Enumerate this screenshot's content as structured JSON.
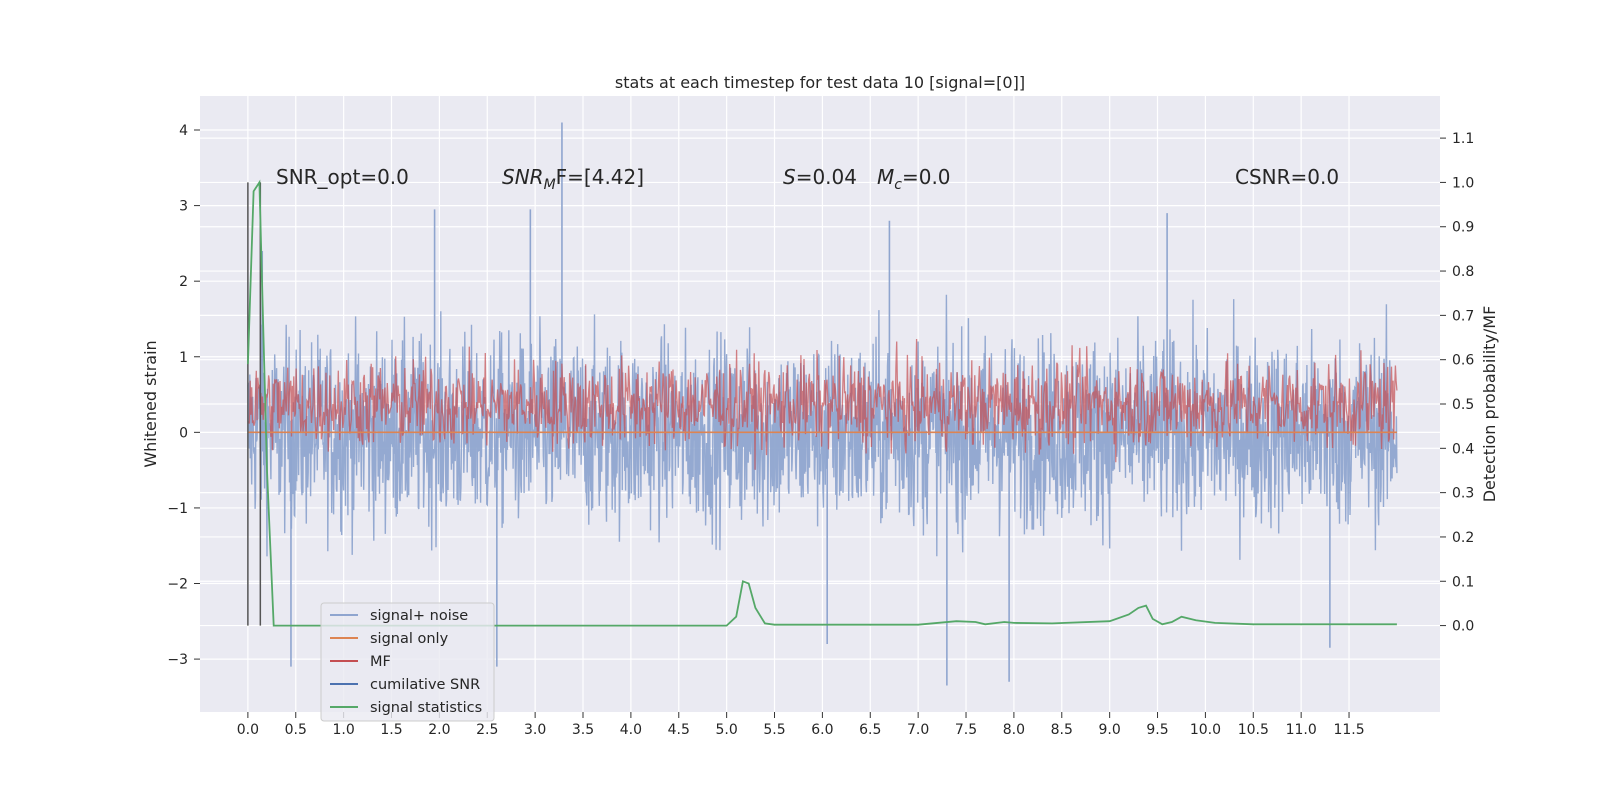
{
  "chart_data": {
    "type": "line",
    "title": "stats at each timestep for test data 10 [signal=[0]]",
    "xlabel": "",
    "ylabel": "Whitened strain",
    "ylabel_right": "Detection probability/MF",
    "xlim": [
      -0.5,
      12.45
    ],
    "ylim": [
      -3.7,
      4.45
    ],
    "ylim_right": [
      -0.195,
      1.195
    ],
    "x_ticks": [
      "0.0",
      "0.5",
      "1.0",
      "1.5",
      "2.0",
      "2.5",
      "3.0",
      "3.5",
      "4.0",
      "4.5",
      "5.0",
      "5.5",
      "6.0",
      "6.5",
      "7.0",
      "7.5",
      "8.0",
      "8.5",
      "9.0",
      "9.5",
      "10.0",
      "10.5",
      "11.0",
      "11.5"
    ],
    "y_ticks_left": [
      "−3",
      "−2",
      "−1",
      "0",
      "1",
      "2",
      "3",
      "4"
    ],
    "y_ticks_right": [
      "0.0",
      "0.1",
      "0.2",
      "0.3",
      "0.4",
      "0.5",
      "0.6",
      "0.7",
      "0.8",
      "0.9",
      "1.0",
      "1.1"
    ],
    "grid": true,
    "legend_position": "lower-left",
    "annotations": [
      {
        "id": "snr-opt",
        "text": "SNR_opt=0.0"
      },
      {
        "id": "snr-mf",
        "text_main": "SNR",
        "text_sub": "M",
        "text_rest": "F=[4.42]"
      },
      {
        "id": "s-value",
        "text_main": "S",
        "text_rest": "=0.04"
      },
      {
        "id": "mc-value",
        "text_main": "M",
        "text_sub": "c",
        "text_rest": "=0.0"
      },
      {
        "id": "csnr",
        "text": "CSNR=0.0"
      }
    ],
    "legend": [
      {
        "label": "signal+ noise",
        "color": "#8fa5cf"
      },
      {
        "label": "signal only",
        "color": "#dd8452"
      },
      {
        "label": "MF",
        "color": "#c44e52"
      },
      {
        "label": "cumilative SNR",
        "color": "#4c72b0"
      },
      {
        "label": "signal statistics",
        "color": "#55a868"
      }
    ],
    "series": [
      {
        "name": "signal+ noise",
        "axis": "left",
        "color": "#8fa5cf",
        "x_range": [
          0.0,
          12.0
        ],
        "typical_range": [
          -2.1,
          2.1
        ],
        "extremes": [
          {
            "x": 3.28,
            "y": 4.1
          },
          {
            "x": 0.15,
            "y": 2.4
          },
          {
            "x": 1.95,
            "y": 2.95
          },
          {
            "x": 2.95,
            "y": 2.95
          },
          {
            "x": 6.7,
            "y": 2.8
          },
          {
            "x": 9.6,
            "y": 2.9
          },
          {
            "x": 0.45,
            "y": -3.1
          },
          {
            "x": 2.6,
            "y": -3.1
          },
          {
            "x": 7.3,
            "y": -3.35
          },
          {
            "x": 7.95,
            "y": -3.3
          },
          {
            "x": 6.05,
            "y": -2.8
          },
          {
            "x": 11.3,
            "y": -2.85
          }
        ]
      },
      {
        "name": "signal only",
        "axis": "left",
        "color": "#dd8452",
        "x": [
          0.0,
          12.0
        ],
        "y": [
          0.0,
          0.0
        ]
      },
      {
        "name": "MF",
        "axis": "right",
        "color": "#c44e52",
        "x_range": [
          0.0,
          12.0
        ],
        "typical_range": [
          0.43,
          0.57
        ]
      },
      {
        "name": "signal statistics",
        "axis": "right",
        "color": "#55a868",
        "x": [
          0.0,
          0.06,
          0.12,
          0.2,
          0.27,
          0.33,
          1.0,
          2.0,
          3.0,
          4.0,
          5.0,
          5.1,
          5.17,
          5.23,
          5.3,
          5.4,
          5.5,
          6.0,
          7.0,
          7.4,
          7.6,
          7.7,
          7.9,
          8.0,
          8.4,
          9.0,
          9.2,
          9.3,
          9.38,
          9.45,
          9.55,
          9.65,
          9.75,
          9.9,
          10.1,
          10.5,
          12.0
        ],
        "y": [
          0.59,
          0.98,
          1.0,
          0.35,
          0.0,
          0.0,
          0.0,
          0.0,
          0.0,
          0.0,
          0.0,
          0.02,
          0.1,
          0.095,
          0.04,
          0.005,
          0.002,
          0.002,
          0.002,
          0.01,
          0.008,
          0.003,
          0.008,
          0.006,
          0.005,
          0.01,
          0.025,
          0.04,
          0.045,
          0.015,
          0.003,
          0.008,
          0.02,
          0.012,
          0.006,
          0.003,
          0.003
        ]
      },
      {
        "name": "vertical markers",
        "axis": "right",
        "color": "#555555",
        "x": [
          0.0,
          0.13
        ],
        "y_top": [
          1.0,
          1.0
        ],
        "y_bottom": [
          0.0,
          0.0
        ]
      }
    ]
  }
}
